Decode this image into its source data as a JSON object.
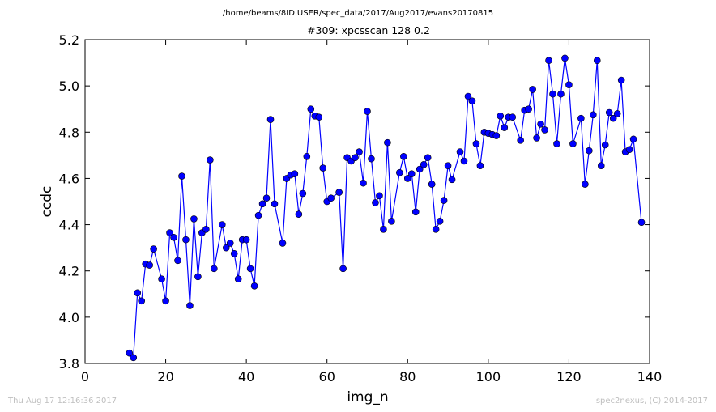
{
  "header": {
    "path": "/home/beams/8IDIUSER/spec_data/2017/Aug2017/evans20170815"
  },
  "footer": {
    "timestamp": "Thu Aug 17 12:16:36 2017",
    "credit": "spec2nexus, (C) 2014-2017"
  },
  "colors": {
    "series": "#0000ff"
  },
  "chart_data": {
    "type": "line",
    "title": "#309: xpcsscan 128 0.2",
    "xlabel": "img_n",
    "ylabel": "ccdc",
    "xlim": [
      0,
      140
    ],
    "ylim": [
      3.8,
      5.2
    ],
    "xticks": [
      "0",
      "20",
      "40",
      "60",
      "80",
      "100",
      "120",
      "140"
    ],
    "yticks": [
      "3.8",
      "4.0",
      "4.2",
      "4.4",
      "4.6",
      "4.8",
      "5.0",
      "5.2"
    ],
    "grid": false,
    "legend": "none",
    "marker": "circle",
    "series": [
      {
        "x": [
          11,
          12,
          13,
          14,
          15,
          16,
          17,
          19,
          20,
          21,
          22,
          23,
          24,
          25,
          26,
          27,
          28,
          29,
          30,
          31,
          32,
          34,
          35,
          36,
          37,
          38,
          39,
          40,
          41,
          42,
          43,
          44,
          45,
          46,
          47,
          49,
          50,
          51,
          52,
          53,
          54,
          55,
          56,
          57,
          58,
          59,
          60,
          61,
          63,
          64,
          65,
          66,
          67,
          68,
          69,
          70,
          71,
          72,
          73,
          74,
          75,
          76,
          78,
          79,
          80,
          81,
          82,
          83,
          84,
          85,
          86,
          87,
          88,
          89,
          90,
          91,
          93,
          94,
          95,
          96,
          97,
          98,
          99,
          100,
          101,
          102,
          103,
          104,
          105,
          106,
          108,
          109,
          110,
          111,
          112,
          113,
          114,
          115,
          116,
          117,
          118,
          119,
          120,
          121,
          123,
          124,
          125,
          126,
          127,
          128,
          129,
          130,
          131,
          132,
          133,
          134,
          135,
          136,
          138
        ],
        "y": [
          3.845,
          3.825,
          4.105,
          4.07,
          4.23,
          4.225,
          4.295,
          4.165,
          4.07,
          4.365,
          4.345,
          4.245,
          4.61,
          4.335,
          4.05,
          4.425,
          4.175,
          4.365,
          4.38,
          4.68,
          4.21,
          4.4,
          4.3,
          4.32,
          4.275,
          4.165,
          4.335,
          4.335,
          4.21,
          4.135,
          4.44,
          4.49,
          4.515,
          4.855,
          4.49,
          4.32,
          4.6,
          4.615,
          4.62,
          4.445,
          4.535,
          4.695,
          4.9,
          4.87,
          4.865,
          4.645,
          4.5,
          4.515,
          4.54,
          4.21,
          4.69,
          4.675,
          4.69,
          4.715,
          4.58,
          4.89,
          4.685,
          4.495,
          4.525,
          4.38,
          4.755,
          4.415,
          4.625,
          4.695,
          4.6,
          4.62,
          4.455,
          4.64,
          4.66,
          4.69,
          4.575,
          4.38,
          4.415,
          4.505,
          4.655,
          4.595,
          4.715,
          4.675,
          4.955,
          4.935,
          4.75,
          4.655,
          4.8,
          4.795,
          4.79,
          4.785,
          4.87,
          4.82,
          4.865,
          4.865,
          4.765,
          4.895,
          4.9,
          4.985,
          4.775,
          4.835,
          4.81,
          5.11,
          4.965,
          4.75,
          4.965,
          5.12,
          5.005,
          4.75,
          4.86,
          4.575,
          4.72,
          4.875,
          5.11,
          4.655,
          4.745,
          4.885,
          4.86,
          4.88,
          5.025,
          4.715,
          4.725,
          4.77,
          4.41
        ]
      }
    ]
  }
}
